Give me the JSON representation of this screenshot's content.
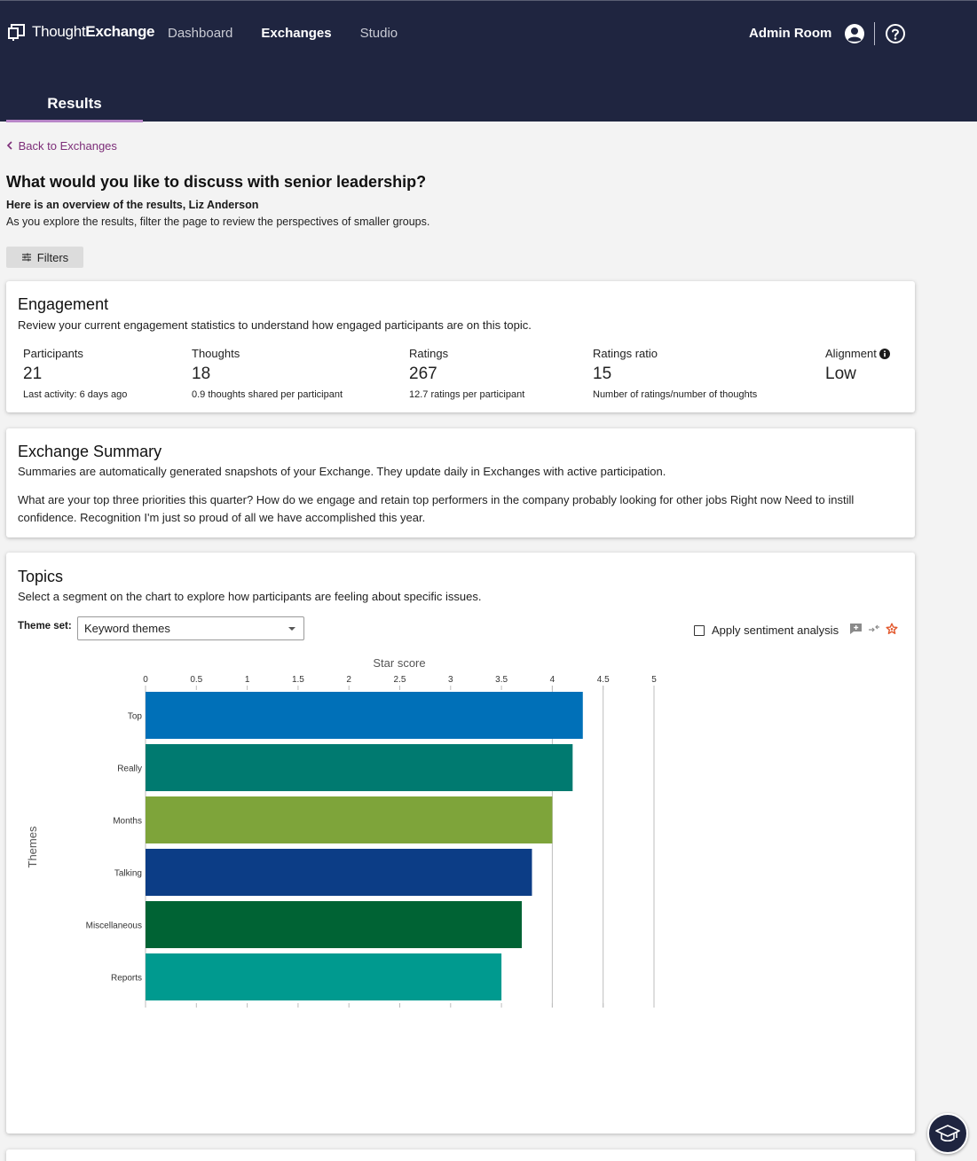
{
  "header": {
    "logo_text_light": "Thought",
    "logo_text_bold": "Exchange",
    "nav": [
      {
        "label": "Dashboard",
        "active": false
      },
      {
        "label": "Exchanges",
        "active": true
      },
      {
        "label": "Studio",
        "active": false
      }
    ],
    "admin_room": "Admin Room",
    "tab": "Results"
  },
  "page": {
    "back_link": "Back to Exchanges",
    "question": "What would you like to discuss with senior leadership?",
    "overview": "Here is an overview of the results, Liz Anderson",
    "explore_note": "As you explore the results, filter the page to review the perspectives of smaller groups.",
    "filters_label": "Filters"
  },
  "engagement": {
    "title": "Engagement",
    "subtitle": "Review your current engagement statistics to understand how engaged participants are on this topic.",
    "stats": [
      {
        "label": "Participants",
        "value": "21",
        "note": "Last activity: 6 days ago"
      },
      {
        "label": "Thoughts",
        "value": "18",
        "note": "0.9 thoughts shared per participant"
      },
      {
        "label": "Ratings",
        "value": "267",
        "note": "12.7 ratings per participant"
      },
      {
        "label": "Ratings ratio",
        "value": "15",
        "note": "Number of ratings/number of thoughts"
      },
      {
        "label": "Alignment",
        "value": "Low",
        "note": ""
      }
    ]
  },
  "summary": {
    "title": "Exchange Summary",
    "subtitle": "Summaries are automatically generated snapshots of your Exchange. They update daily in Exchanges with active participation.",
    "text": "What are your top three priorities this quarter? How do we engage and retain top performers in the company probably looking for other jobs Right now Need to instill confidence. Recognition I'm just so proud of all we have accomplished this year."
  },
  "topics": {
    "title": "Topics",
    "subtitle": "Select a segment on the chart to explore how participants are feeling about specific issues.",
    "theme_set_label": "Theme set:",
    "theme_set_value": "Keyword themes",
    "sentiment_label": "Apply sentiment analysis"
  },
  "chart_data": {
    "type": "bar",
    "orientation": "horizontal",
    "xlabel": "Star score",
    "ylabel": "Themes",
    "xlim": [
      0,
      5
    ],
    "xticks": [
      "0",
      "0.5",
      "1",
      "1.5",
      "2",
      "2.5",
      "3",
      "3.5",
      "4",
      "4.5",
      "5"
    ],
    "gridlines_at": [
      4,
      4.5,
      5
    ],
    "categories": [
      "Top",
      "Really",
      "Months",
      "Talking",
      "Miscellaneous",
      "Reports"
    ],
    "values": [
      4.3,
      4.2,
      4.0,
      3.8,
      3.7,
      3.5
    ],
    "colors": [
      "#0070b8",
      "#007a70",
      "#7ea43a",
      "#0c3d86",
      "#006334",
      "#009a8f"
    ]
  },
  "colors": {
    "nav_bg": "#1f2540",
    "accent_link": "#7c2d78",
    "tab_underline": "#b886c8",
    "star_icon": "#e2572b"
  },
  "icons": {
    "user": "account-circle-icon",
    "help": "help-circle-icon",
    "back": "chevron-left-icon",
    "filters": "sliders-icon",
    "alignment_info": "info-icon",
    "comment": "comment-icon",
    "arrows": "compare-arrows-icon",
    "star": "star-icon",
    "fab": "graduation-cap-icon"
  }
}
